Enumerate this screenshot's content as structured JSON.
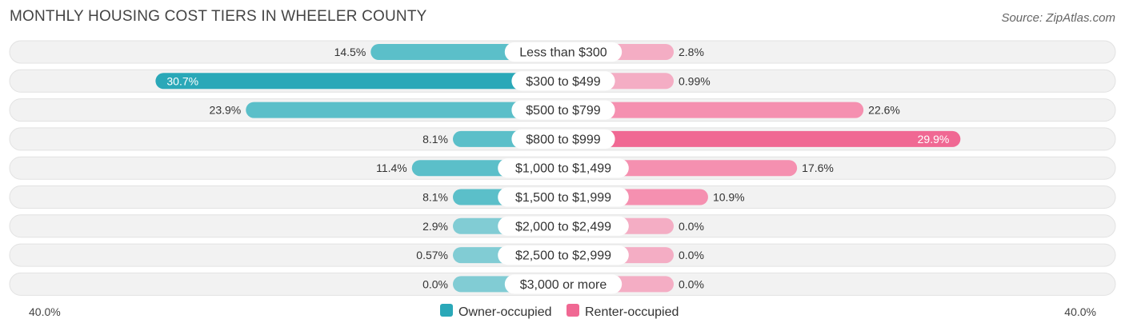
{
  "header": {
    "title": "MONTHLY HOUSING COST TIERS IN WHEELER COUNTY",
    "source": "Source: ZipAtlas.com"
  },
  "colors": {
    "owner": "#5bbfc9",
    "owner_strong": "#2aa8b8",
    "renter": "#f590b0",
    "renter_strong": "#f06893",
    "track": "#eeeeee"
  },
  "chart_data": {
    "type": "bar",
    "orientation": "horizontal-diverging",
    "categories": [
      "Less than $300",
      "$300 to $499",
      "$500 to $799",
      "$800 to $999",
      "$1,000 to $1,499",
      "$1,500 to $1,999",
      "$2,000 to $2,499",
      "$2,500 to $2,999",
      "$3,000 or more"
    ],
    "series": [
      {
        "name": "Owner-occupied",
        "values": [
          14.5,
          30.7,
          23.9,
          8.1,
          11.4,
          8.1,
          2.9,
          0.57,
          0.0
        ],
        "labels": [
          "14.5%",
          "30.7%",
          "23.9%",
          "8.1%",
          "11.4%",
          "8.1%",
          "2.9%",
          "0.57%",
          "0.0%"
        ]
      },
      {
        "name": "Renter-occupied",
        "values": [
          2.8,
          0.99,
          22.6,
          29.9,
          17.6,
          10.9,
          0.0,
          0.0,
          0.0
        ],
        "labels": [
          "2.8%",
          "0.99%",
          "22.6%",
          "29.9%",
          "17.6%",
          "10.9%",
          "0.0%",
          "0.0%",
          "0.0%"
        ]
      }
    ],
    "xlim": [
      -40,
      40
    ],
    "axis_left_label": "40.0%",
    "axis_right_label": "40.0%",
    "legend_position": "bottom-center"
  }
}
